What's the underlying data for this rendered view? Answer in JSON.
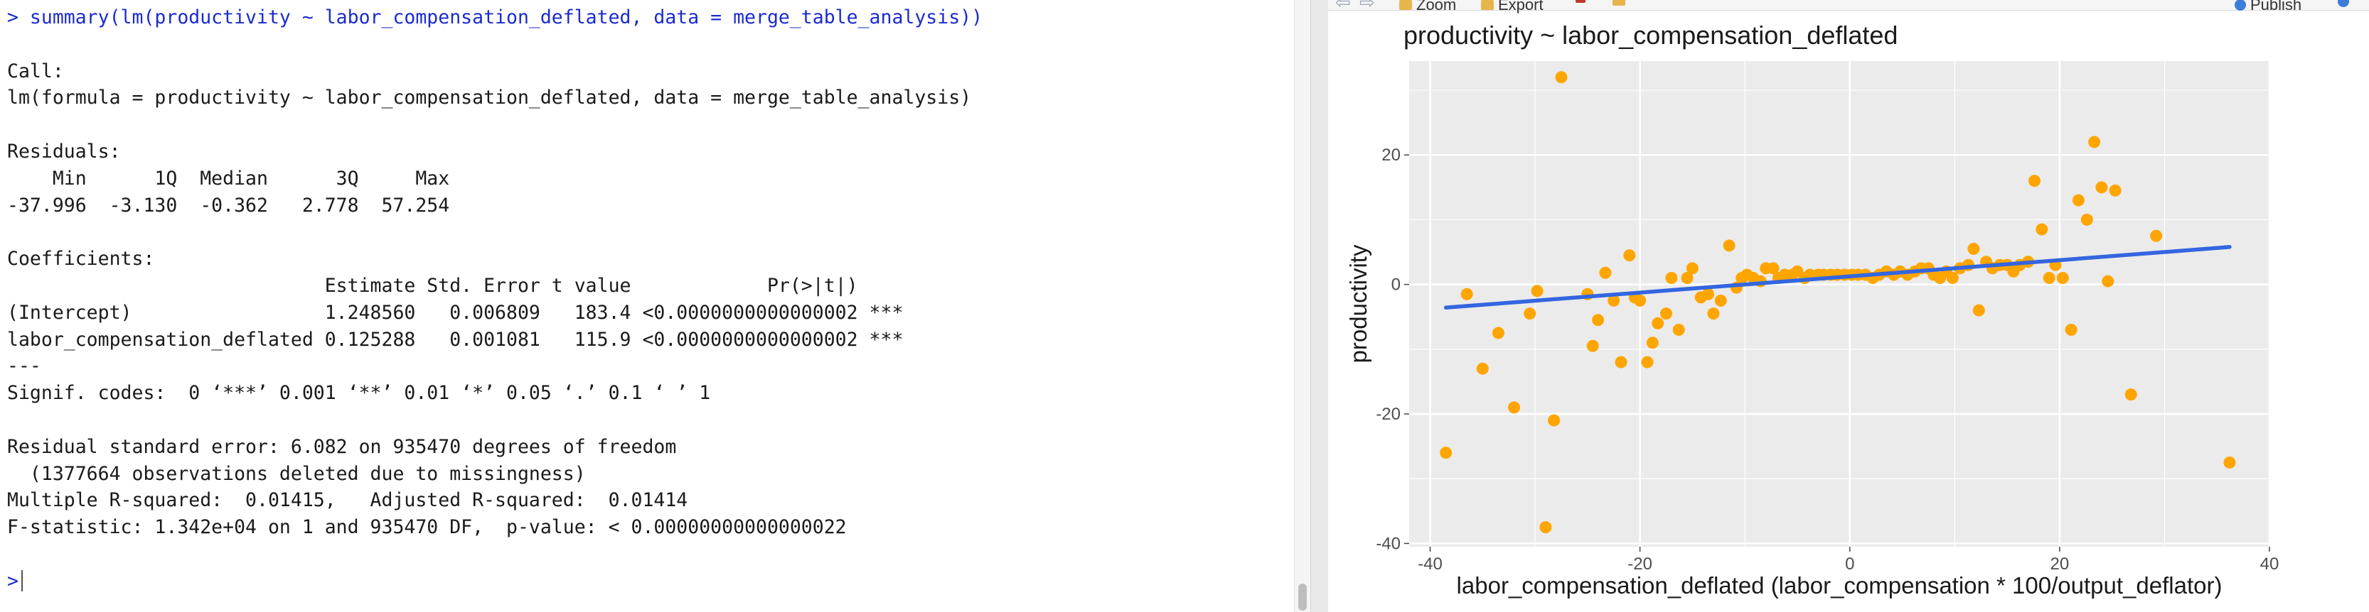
{
  "console": {
    "lines": [
      {
        "text": "> summary(lm(productivity ~ labor_compensation_deflated, data = merge_table_analysis))",
        "kind": "input"
      },
      {
        "text": "",
        "kind": "output"
      },
      {
        "text": "Call:",
        "kind": "output"
      },
      {
        "text": "lm(formula = productivity ~ labor_compensation_deflated, data = merge_table_analysis)",
        "kind": "output"
      },
      {
        "text": "",
        "kind": "output"
      },
      {
        "text": "Residuals:",
        "kind": "output"
      },
      {
        "text": "    Min      1Q  Median      3Q     Max ",
        "kind": "output"
      },
      {
        "text": "-37.996  -3.130  -0.362   2.778  57.254 ",
        "kind": "output"
      },
      {
        "text": "",
        "kind": "output"
      },
      {
        "text": "Coefficients:",
        "kind": "output"
      },
      {
        "text": "                            Estimate Std. Error t value            Pr(>|t|)    ",
        "kind": "output"
      },
      {
        "text": "(Intercept)                 1.248560   0.006809   183.4 <0.0000000000000002 ***",
        "kind": "output"
      },
      {
        "text": "labor_compensation_deflated 0.125288   0.001081   115.9 <0.0000000000000002 ***",
        "kind": "output"
      },
      {
        "text": "---",
        "kind": "output"
      },
      {
        "text": "Signif. codes:  0 ‘***’ 0.001 ‘**’ 0.01 ‘*’ 0.05 ‘.’ 0.1 ‘ ’ 1",
        "kind": "output"
      },
      {
        "text": "",
        "kind": "output"
      },
      {
        "text": "Residual standard error: 6.082 on 935470 degrees of freedom",
        "kind": "output"
      },
      {
        "text": "  (1377664 observations deleted due to missingness)",
        "kind": "output"
      },
      {
        "text": "Multiple R-squared:  0.01415,   Adjusted R-squared:  0.01414 ",
        "kind": "output"
      },
      {
        "text": "F-statistic: 1.342e+04 on 1 and 935470 DF,  p-value: < 0.00000000000000022",
        "kind": "output"
      },
      {
        "text": "",
        "kind": "output"
      }
    ],
    "prompt": ">"
  },
  "toolbar": {
    "zoom_label": "Zoom",
    "export_label": "Export",
    "publish_label": "Publish"
  },
  "chart_data": {
    "type": "scatter",
    "title": "productivity ~ labor_compensation_deflated",
    "xlabel": "labor_compensation_deflated (labor_compensation * 100/output_deflator)",
    "ylabel": "productivity",
    "xlim": [
      -42,
      40
    ],
    "ylim": [
      -40.5,
      34.5
    ],
    "xticks": [
      -40,
      -20,
      0,
      20,
      40
    ],
    "yticks": [
      -40,
      -20,
      0,
      20
    ],
    "grid": true,
    "point_color": "#FFA500",
    "line_color": "#3366E0",
    "points": [
      [
        -38.5,
        -26
      ],
      [
        -36.5,
        -1.5
      ],
      [
        -35,
        -13
      ],
      [
        -33.5,
        -7.5
      ],
      [
        -32,
        -19
      ],
      [
        -30.5,
        -4.5
      ],
      [
        -29.8,
        -1
      ],
      [
        -29,
        -37.5
      ],
      [
        -28.2,
        -21
      ],
      [
        -27.5,
        32
      ],
      [
        -25,
        -1.5
      ],
      [
        -24.5,
        -9.5
      ],
      [
        -24,
        -5.5
      ],
      [
        -23.3,
        1.8
      ],
      [
        -22.5,
        -2.5
      ],
      [
        -21.8,
        -12
      ],
      [
        -21,
        4.5
      ],
      [
        -20.5,
        -2
      ],
      [
        -20,
        -2.5
      ],
      [
        -19.3,
        -12
      ],
      [
        -18.8,
        -9
      ],
      [
        -18.3,
        -6
      ],
      [
        -17.5,
        -4.5
      ],
      [
        -17,
        1
      ],
      [
        -16.3,
        -7
      ],
      [
        -15.5,
        1
      ],
      [
        -15,
        2.5
      ],
      [
        -14.2,
        -2
      ],
      [
        -13.5,
        -1.5
      ],
      [
        -13,
        -4.5
      ],
      [
        -12.3,
        -2.5
      ],
      [
        -11.5,
        6
      ],
      [
        -10.8,
        -0.5
      ],
      [
        -10.3,
        1
      ],
      [
        -9.8,
        1.5
      ],
      [
        -9.2,
        1
      ],
      [
        -8.5,
        0.5
      ],
      [
        -8,
        2.5
      ],
      [
        -7.3,
        2.5
      ],
      [
        -6.8,
        1
      ],
      [
        -6.2,
        1.5
      ],
      [
        -5.5,
        1.5
      ],
      [
        -5,
        2
      ],
      [
        -4.3,
        1
      ],
      [
        -3.8,
        1.5
      ],
      [
        -3,
        1.5
      ],
      [
        -2.5,
        1.5
      ],
      [
        -1.8,
        1.5
      ],
      [
        -1.2,
        1.5
      ],
      [
        -0.5,
        1.5
      ],
      [
        0.2,
        1.5
      ],
      [
        0.8,
        1.5
      ],
      [
        1.5,
        1.5
      ],
      [
        2.2,
        1
      ],
      [
        2.8,
        1.5
      ],
      [
        3.5,
        2
      ],
      [
        4.2,
        1.5
      ],
      [
        4.8,
        2
      ],
      [
        5.5,
        1.5
      ],
      [
        6.2,
        2
      ],
      [
        6.8,
        2.5
      ],
      [
        7.5,
        2.5
      ],
      [
        8,
        1.5
      ],
      [
        8.6,
        1
      ],
      [
        9.2,
        2
      ],
      [
        9.8,
        1
      ],
      [
        10.5,
        2.5
      ],
      [
        11.3,
        3
      ],
      [
        11.8,
        5.5
      ],
      [
        12.3,
        -4
      ],
      [
        13,
        3.5
      ],
      [
        13.6,
        2.5
      ],
      [
        14.3,
        3
      ],
      [
        15,
        3
      ],
      [
        15.6,
        2
      ],
      [
        16.2,
        3
      ],
      [
        17,
        3.5
      ],
      [
        17.6,
        16
      ],
      [
        18.3,
        8.5
      ],
      [
        19,
        1
      ],
      [
        19.6,
        3
      ],
      [
        20.3,
        1
      ],
      [
        21.1,
        -7
      ],
      [
        21.8,
        13
      ],
      [
        22.6,
        10
      ],
      [
        23.3,
        22
      ],
      [
        24,
        15
      ],
      [
        24.6,
        0.5
      ],
      [
        25.3,
        14.5
      ],
      [
        26.8,
        -17
      ],
      [
        29.2,
        7.5
      ],
      [
        36.2,
        -27.5
      ]
    ],
    "fit": {
      "intercept": 1.24856,
      "slope": 0.125288,
      "x_range": [
        -38.5,
        36.2
      ]
    }
  }
}
